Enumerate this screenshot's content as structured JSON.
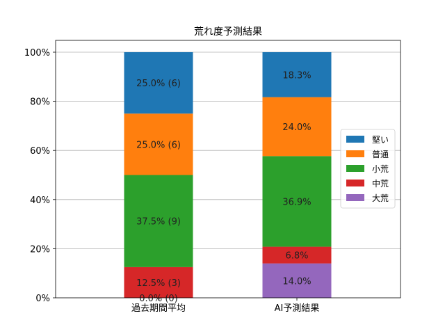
{
  "chart_data": {
    "type": "bar",
    "stacked": true,
    "orientation": "vertical",
    "title": "荒れ度予測結果",
    "xlabel": "",
    "ylabel": "",
    "ylim": [
      0,
      100
    ],
    "y_ticks": [
      "0%",
      "20%",
      "40%",
      "60%",
      "80%",
      "100%"
    ],
    "grid": "horizontal",
    "legend_position": "center-right",
    "categories": [
      "過去期間平均",
      "AI予測結果"
    ],
    "series": [
      {
        "name": "大荒",
        "color": "#9467bd",
        "values": [
          0.0,
          14.0
        ],
        "labels": [
          "0.0% (0)",
          "14.0%"
        ]
      },
      {
        "name": "中荒",
        "color": "#d62728",
        "values": [
          12.5,
          6.8
        ],
        "labels": [
          "12.5% (3)",
          "6.8%"
        ]
      },
      {
        "name": "小荒",
        "color": "#2ca02c",
        "values": [
          37.5,
          36.9
        ],
        "labels": [
          "37.5% (9)",
          "36.9%"
        ]
      },
      {
        "name": "普通",
        "color": "#ff7f0e",
        "values": [
          25.0,
          24.0
        ],
        "labels": [
          "25.0% (6)",
          "24.0%"
        ]
      },
      {
        "name": "堅い",
        "color": "#1f77b4",
        "values": [
          25.0,
          18.3
        ],
        "labels": [
          "25.0% (6)",
          "18.3%"
        ]
      }
    ],
    "legend_order": [
      "堅い",
      "普通",
      "小荒",
      "中荒",
      "大荒"
    ]
  }
}
